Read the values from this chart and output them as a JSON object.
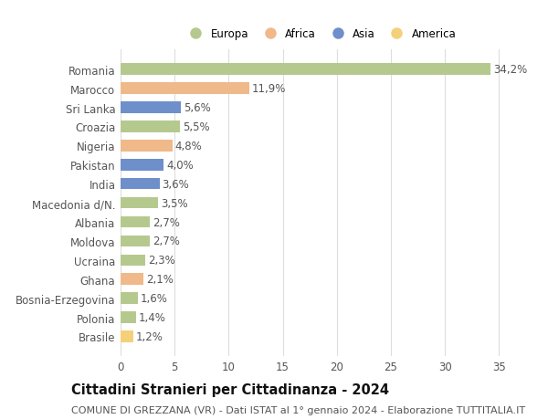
{
  "countries": [
    "Romania",
    "Marocco",
    "Sri Lanka",
    "Croazia",
    "Nigeria",
    "Pakistan",
    "India",
    "Macedonia d/N.",
    "Albania",
    "Moldova",
    "Ucraina",
    "Ghana",
    "Bosnia-Erzegovina",
    "Polonia",
    "Brasile"
  ],
  "values": [
    34.2,
    11.9,
    5.6,
    5.5,
    4.8,
    4.0,
    3.6,
    3.5,
    2.7,
    2.7,
    2.3,
    2.1,
    1.6,
    1.4,
    1.2
  ],
  "labels": [
    "34,2%",
    "11,9%",
    "5,6%",
    "5,5%",
    "4,8%",
    "4,0%",
    "3,6%",
    "3,5%",
    "2,7%",
    "2,7%",
    "2,3%",
    "2,1%",
    "1,6%",
    "1,4%",
    "1,2%"
  ],
  "colors": [
    "#b5c98e",
    "#f0b98a",
    "#6e8fc9",
    "#b5c98e",
    "#f0b98a",
    "#6e8fc9",
    "#6e8fc9",
    "#b5c98e",
    "#b5c98e",
    "#b5c98e",
    "#b5c98e",
    "#f0b98a",
    "#b5c98e",
    "#b5c98e",
    "#f5d07a"
  ],
  "regions": [
    "Europa",
    "Africa",
    "Asia",
    "Europa",
    "Africa",
    "Asia",
    "Asia",
    "Europa",
    "Europa",
    "Europa",
    "Europa",
    "Africa",
    "Europa",
    "Europa",
    "America"
  ],
  "legend_labels": [
    "Europa",
    "Africa",
    "Asia",
    "America"
  ],
  "legend_colors": [
    "#b5c98e",
    "#f0b98a",
    "#6e8fc9",
    "#f5d07a"
  ],
  "title": "Cittadini Stranieri per Cittadinanza - 2024",
  "subtitle": "COMUNE DI GREZZANA (VR) - Dati ISTAT al 1° gennaio 2024 - Elaborazione TUTTITALIA.IT",
  "xlim": [
    0,
    37
  ],
  "xticks": [
    0,
    5,
    10,
    15,
    20,
    25,
    30,
    35
  ],
  "background_color": "#ffffff",
  "grid_color": "#dddddd",
  "bar_height": 0.6,
  "label_fontsize": 8.5,
  "tick_fontsize": 8.5,
  "title_fontsize": 10.5,
  "subtitle_fontsize": 8.0
}
